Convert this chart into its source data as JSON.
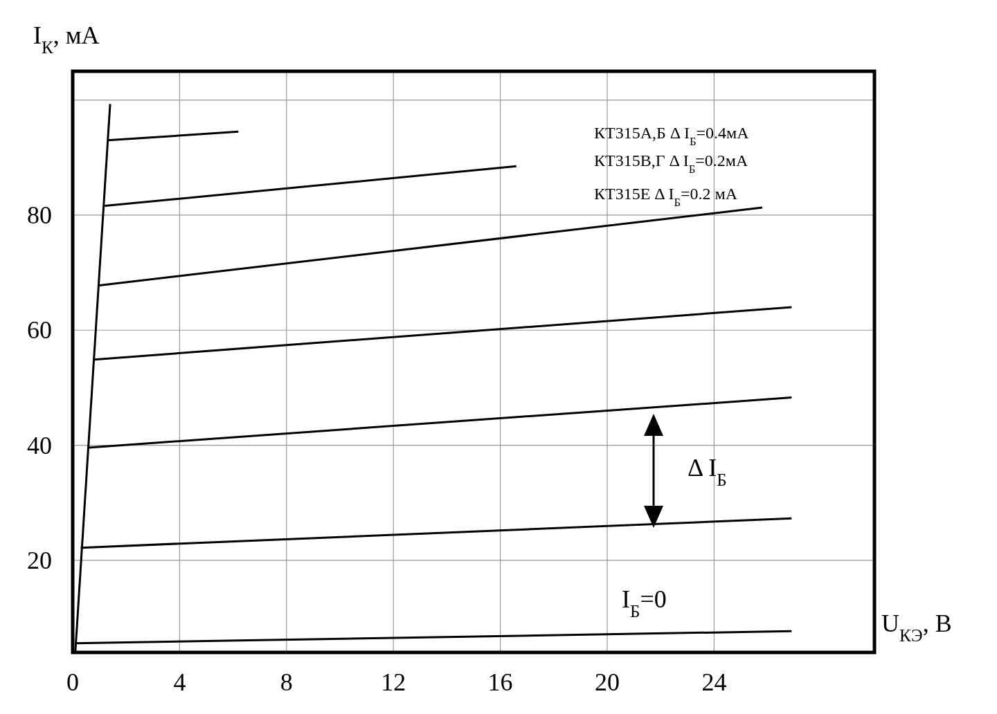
{
  "chart_data": {
    "type": "line",
    "xlabel": "U$_{КЭ}$, В",
    "ylabel": "I$_{К}$, мА",
    "xlim": [
      0,
      30
    ],
    "ylim": [
      4,
      105
    ],
    "xticks": [
      0,
      4,
      8,
      12,
      16,
      20,
      24
    ],
    "yticks": [
      20,
      40,
      60,
      80,
      {
        "value": 100,
        "label": null
      }
    ],
    "grid": true,
    "line_style": "solid",
    "marker": "none",
    "series": [
      {
        "color": "#000000",
        "x": [
          0.1,
          1.4
        ],
        "values": [
          4.2,
          99.3
        ]
      },
      {
        "color": "#000000",
        "x": [
          1.3,
          6.2
        ],
        "values": [
          93,
          94.5
        ]
      },
      {
        "color": "#000000",
        "x": [
          1.2,
          16.6
        ],
        "values": [
          81.6,
          88.5
        ]
      },
      {
        "color": "#000000",
        "x": [
          1.0,
          25.8
        ],
        "values": [
          67.8,
          81.3
        ]
      },
      {
        "color": "#000000",
        "x": [
          0.8,
          26.9
        ],
        "values": [
          54.9,
          64
        ]
      },
      {
        "color": "#000000",
        "x": [
          0.6,
          26.9
        ],
        "values": [
          39.6,
          48.3
        ]
      },
      {
        "color": "#000000",
        "x": [
          0.3,
          26.9
        ],
        "values": [
          22.2,
          27.3
        ]
      },
      {
        "color": "#000000",
        "x": [
          0.1,
          26.9
        ],
        "values": [
          5.6,
          7.7
        ]
      }
    ],
    "annotations": [
      "КТ315А,Б  Δ I$_{Б}$=0.4мА",
      "КТ315В,Г  Δ I$_{Б}$=0.2мА",
      "КТ315Е   Δ I$_{Б}$=0.2 мА",
      "Δ I$_{Б}$",
      "I$_{Б}$=0"
    ]
  }
}
